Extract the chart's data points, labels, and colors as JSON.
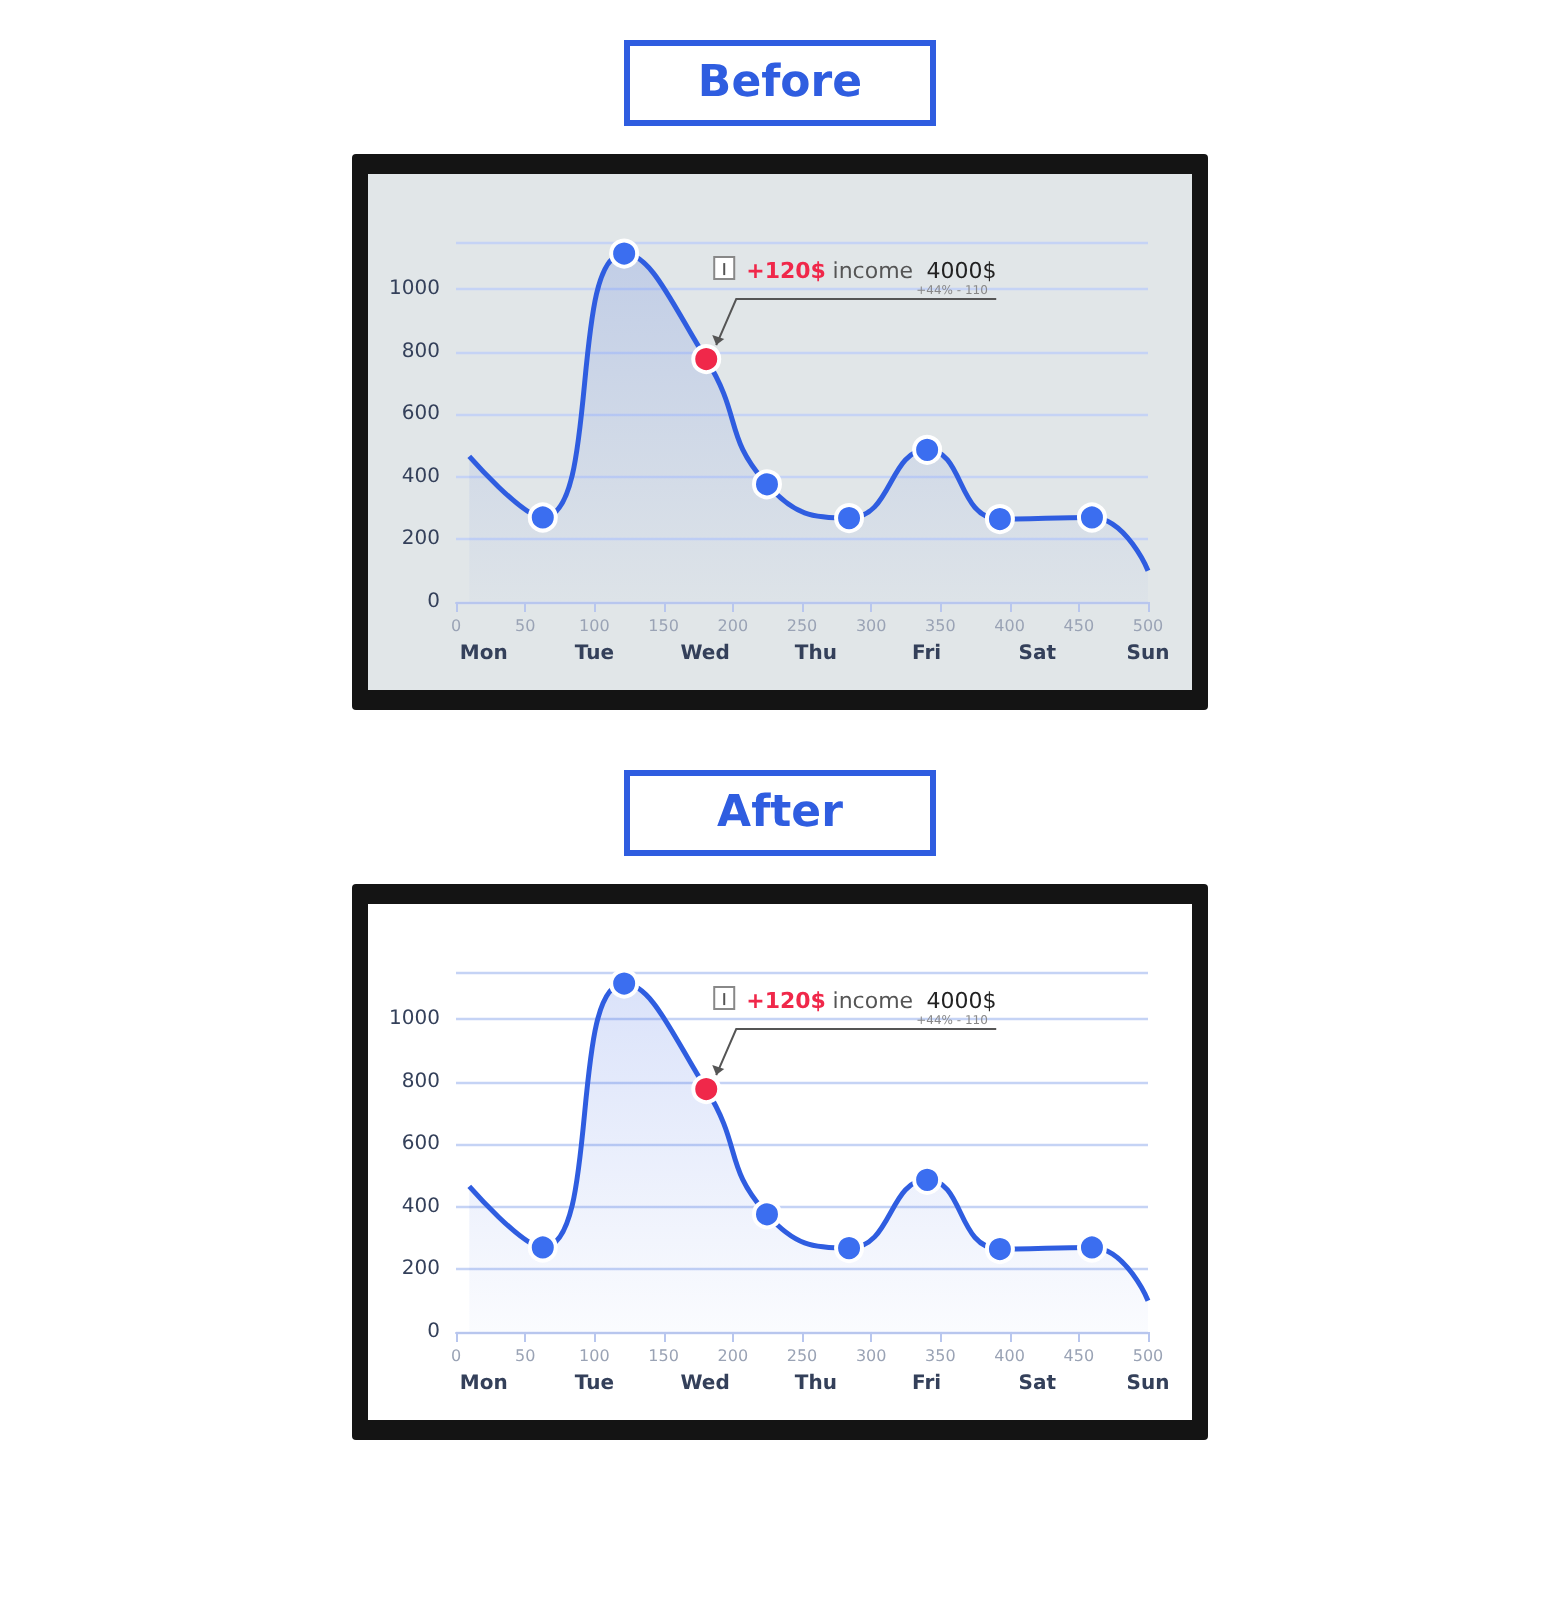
{
  "chart_data": [
    {
      "type": "area",
      "title": "Before",
      "x": [
        9.6,
        62.7,
        121.5,
        180.8,
        224.7,
        284,
        340.4,
        393,
        459.5,
        500
      ],
      "series": [
        {
          "color": "#2f5de0",
          "values": [
            465,
            270,
            1113,
            776,
            376,
            268,
            486,
            265,
            270,
            100
          ],
          "colors": [
            null,
            "#3b6ef0",
            "#3b6ef0",
            "#f0284a",
            "#3b6ef0",
            "#3b6ef0",
            "#3b6ef0",
            "#3b6ef0",
            "#3b6ef0",
            null
          ]
        }
      ],
      "xlim": [
        0,
        500
      ],
      "xticks": [
        0,
        50,
        100,
        150,
        200,
        250,
        300,
        350,
        400,
        450,
        500
      ],
      "ylim": [
        0,
        1150
      ],
      "yticks": [
        0,
        200,
        400,
        600,
        800,
        1000
      ],
      "grid": "y",
      "marker": "circle",
      "annotations": [
        {
          "text": "+120$ income 4000$",
          "x": 180.8,
          "y": 776
        },
        "+44% - 110",
        "Mon",
        "Tue",
        "Wed",
        "Thu",
        "Fri",
        "Sat",
        "Sun"
      ]
    },
    {
      "type": "area",
      "title": "After",
      "x": [
        9.6,
        62.7,
        121.5,
        180.8,
        224.7,
        284,
        340.4,
        393,
        459.5,
        500
      ],
      "series": [
        {
          "color": "#2f5de0",
          "values": [
            465,
            270,
            1113,
            776,
            376,
            268,
            486,
            265,
            270,
            100
          ],
          "colors": [
            null,
            "#3b6ef0",
            "#3b6ef0",
            "#f0284a",
            "#3b6ef0",
            "#3b6ef0",
            "#3b6ef0",
            "#3b6ef0",
            "#3b6ef0",
            null
          ]
        }
      ],
      "xlim": [
        0,
        500
      ],
      "xticks": [
        0,
        50,
        100,
        150,
        200,
        250,
        300,
        350,
        400,
        450,
        500
      ],
      "ylim": [
        0,
        1150
      ],
      "yticks": [
        0,
        200,
        400,
        600,
        800,
        1000
      ],
      "grid": "y",
      "marker": "circle",
      "annotations": [
        {
          "text": "+120$ income 4000$",
          "x": 180.8,
          "y": 776
        },
        "+44% - 110",
        "Mon",
        "Tue",
        "Wed",
        "Thu",
        "Fri",
        "Sat",
        "Sun"
      ]
    }
  ]
}
